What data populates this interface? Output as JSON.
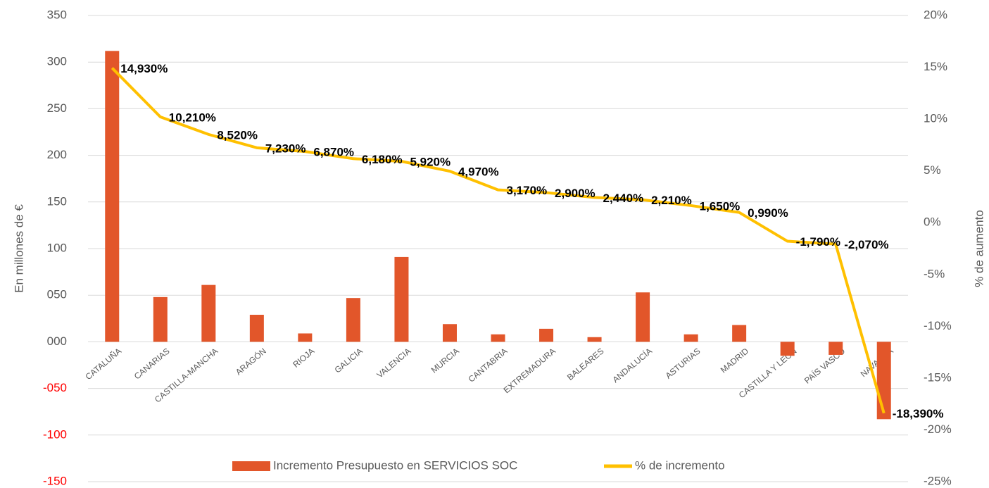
{
  "chart_data": {
    "type": "bar-line",
    "categories": [
      "CATALUÑA",
      "CANARIAS",
      "CASTILLA-MANCHA",
      "ARAGÓN",
      "RIOJA",
      "GALICIA",
      "VALENCIA",
      "MURCIA",
      "CANTABRIA",
      "EXTREMADURA",
      "BALEARES",
      "ANDALUCÍA",
      "ASTURIAS",
      "MADRID",
      "CASTILLA Y LEÓN",
      "PAÍS VASCO",
      "NAVARRA"
    ],
    "series": [
      {
        "name": "Incremento Presupuesto en SERVICIOS SOC",
        "type": "bar",
        "color": "#e2562a",
        "values": [
          312,
          48,
          61,
          29,
          9,
          47,
          91,
          19,
          8,
          14,
          5,
          53,
          8,
          18,
          -15,
          -14,
          -83
        ]
      },
      {
        "name": "% de incremento",
        "type": "line",
        "axis": "y2",
        "color": "#ffc000",
        "values": [
          14.93,
          10.21,
          8.52,
          7.23,
          6.87,
          6.18,
          5.92,
          4.97,
          3.17,
          2.9,
          2.44,
          2.21,
          1.65,
          0.99,
          -1.79,
          -2.07,
          -18.39
        ],
        "value_labels": [
          "14,930%",
          "10,210%",
          "8,520%",
          "7,230%",
          "6,870%",
          "6,180%",
          "5,920%",
          "4,970%",
          "3,170%",
          "2,900%",
          "2,440%",
          "2,210%",
          "1,650%",
          "0,990%",
          "-1,790%",
          "-2,070%",
          "-18,390%"
        ]
      }
    ],
    "y_label": "En millones de €",
    "y2_label": "% de aumento",
    "ylim": [
      -150,
      350
    ],
    "yticks": [
      {
        "value": -150,
        "label": "-150"
      },
      {
        "value": -100,
        "label": "-100"
      },
      {
        "value": -50,
        "label": "-050"
      },
      {
        "value": 0,
        "label": "000"
      },
      {
        "value": 50,
        "label": "050"
      },
      100,
      150,
      200,
      250,
      300,
      350
    ],
    "negative_tick_color": "#ff0000",
    "y2lim": [
      -25,
      20
    ],
    "y2ticks": [
      {
        "value": -25,
        "label": "-25%"
      },
      {
        "value": -20,
        "label": "-20%"
      },
      {
        "value": -15,
        "label": "-15%"
      },
      {
        "value": -10,
        "label": "-10%"
      },
      {
        "value": -5,
        "label": "-5%"
      },
      {
        "value": 0,
        "label": "0%"
      },
      {
        "value": 5,
        "label": "5%"
      },
      {
        "value": 10,
        "label": "10%"
      },
      {
        "value": 15,
        "label": "15%"
      },
      {
        "value": 20,
        "label": "20%"
      }
    ],
    "grid": true,
    "legend": "bottom"
  }
}
